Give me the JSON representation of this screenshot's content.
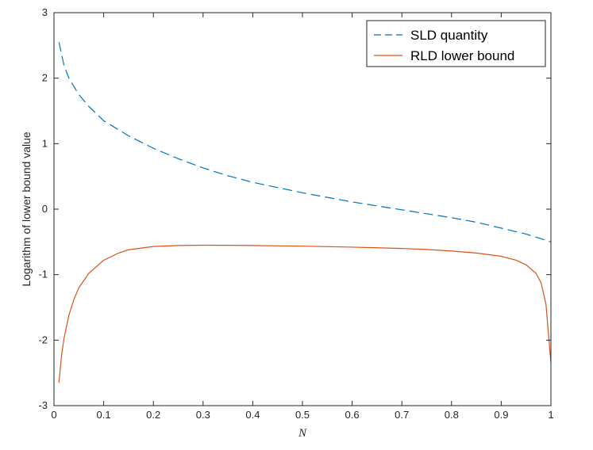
{
  "chart_data": {
    "type": "line",
    "title": "",
    "xlabel": "N",
    "ylabel": "Logarithm of lower bound value",
    "xlim": [
      0,
      1
    ],
    "ylim": [
      -3,
      3
    ],
    "xticks": [
      0,
      0.1,
      0.2,
      0.3,
      0.4,
      0.5,
      0.6,
      0.7,
      0.8,
      0.9,
      1
    ],
    "xtick_labels": [
      "0",
      "0.1",
      "0.2",
      "0.3",
      "0.4",
      "0.5",
      "0.6",
      "0.7",
      "0.8",
      "0.9",
      "1"
    ],
    "yticks": [
      -3,
      -2,
      -1,
      0,
      1,
      2,
      3
    ],
    "ytick_labels": [
      "-3",
      "-2",
      "-1",
      "0",
      "1",
      "2",
      "3"
    ],
    "grid": false,
    "legend_position": "top-right",
    "series": [
      {
        "name": "SLD quantity",
        "color": "#0072BD",
        "style": "dashed",
        "x": [
          0.01,
          0.02,
          0.03,
          0.05,
          0.07,
          0.1,
          0.15,
          0.2,
          0.25,
          0.3,
          0.35,
          0.4,
          0.45,
          0.5,
          0.55,
          0.6,
          0.65,
          0.7,
          0.75,
          0.8,
          0.85,
          0.9,
          0.95,
          1.0
        ],
        "y": [
          2.55,
          2.2,
          2.0,
          1.75,
          1.57,
          1.35,
          1.12,
          0.93,
          0.77,
          0.63,
          0.51,
          0.41,
          0.33,
          0.25,
          0.18,
          0.11,
          0.05,
          -0.01,
          -0.07,
          -0.13,
          -0.2,
          -0.29,
          -0.38,
          -0.5
        ]
      },
      {
        "name": "RLD lower bound",
        "color": "#D95319",
        "style": "solid",
        "x": [
          0.01,
          0.015,
          0.02,
          0.03,
          0.04,
          0.05,
          0.07,
          0.1,
          0.13,
          0.15,
          0.2,
          0.25,
          0.3,
          0.35,
          0.4,
          0.45,
          0.5,
          0.55,
          0.6,
          0.65,
          0.7,
          0.75,
          0.8,
          0.85,
          0.9,
          0.93,
          0.95,
          0.97,
          0.98,
          0.99,
          0.995,
          1.0
        ],
        "y": [
          -2.65,
          -2.25,
          -1.98,
          -1.62,
          -1.38,
          -1.2,
          -0.98,
          -0.78,
          -0.67,
          -0.62,
          -0.57,
          -0.555,
          -0.55,
          -0.552,
          -0.555,
          -0.56,
          -0.565,
          -0.572,
          -0.58,
          -0.59,
          -0.6,
          -0.615,
          -0.64,
          -0.67,
          -0.72,
          -0.78,
          -0.85,
          -0.98,
          -1.12,
          -1.45,
          -1.9,
          -2.35
        ]
      }
    ]
  }
}
